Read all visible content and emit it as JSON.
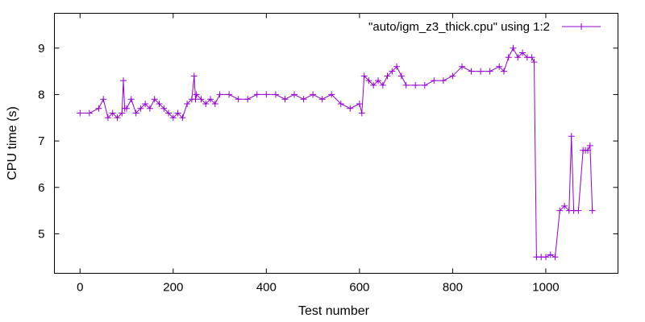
{
  "chart_data": {
    "type": "line",
    "xlabel": "Test number",
    "ylabel": "CPU time (s)",
    "xlim": [
      -55,
      1155
    ],
    "ylim": [
      4.15,
      9.75
    ],
    "x_ticks": [
      0,
      200,
      400,
      600,
      800,
      1000
    ],
    "y_ticks": [
      5,
      6,
      7,
      8,
      9
    ],
    "x_tick_labels": [
      "0",
      "200",
      "400",
      "600",
      "800",
      "1000"
    ],
    "y_tick_labels": [
      "5",
      "6",
      "7",
      "8",
      "9"
    ],
    "grid": false,
    "legend_position": "top-right",
    "marker": "plus",
    "series": [
      {
        "name": "\"auto/igm_z3_thick.cpu\" using 1:2",
        "color": "#9400d3",
        "x": [
          0,
          20,
          40,
          50,
          60,
          70,
          80,
          90,
          93,
          96,
          100,
          110,
          120,
          130,
          140,
          150,
          160,
          170,
          180,
          190,
          200,
          210,
          220,
          230,
          240,
          245,
          248,
          250,
          260,
          270,
          280,
          290,
          300,
          320,
          340,
          360,
          380,
          400,
          420,
          440,
          460,
          480,
          500,
          520,
          540,
          560,
          580,
          600,
          605,
          610,
          620,
          630,
          640,
          650,
          660,
          670,
          680,
          690,
          700,
          720,
          740,
          760,
          780,
          800,
          820,
          840,
          860,
          880,
          900,
          910,
          920,
          930,
          940,
          950,
          960,
          970,
          975,
          980,
          990,
          1000,
          1010,
          1020,
          1030,
          1040,
          1050,
          1055,
          1060,
          1070,
          1080,
          1085,
          1090,
          1095,
          1100
        ],
        "y": [
          7.6,
          7.6,
          7.7,
          7.9,
          7.5,
          7.6,
          7.5,
          7.6,
          8.3,
          7.7,
          7.7,
          7.9,
          7.6,
          7.7,
          7.8,
          7.7,
          7.9,
          7.8,
          7.7,
          7.6,
          7.5,
          7.6,
          7.5,
          7.8,
          7.9,
          8.4,
          7.9,
          8.0,
          7.9,
          7.8,
          7.9,
          7.8,
          8.0,
          8.0,
          7.9,
          7.9,
          8.0,
          8.0,
          8.0,
          7.9,
          8.0,
          7.9,
          8.0,
          7.9,
          8.0,
          7.8,
          7.7,
          7.8,
          7.6,
          8.4,
          8.3,
          8.2,
          8.3,
          8.2,
          8.4,
          8.5,
          8.6,
          8.4,
          8.2,
          8.2,
          8.2,
          8.3,
          8.3,
          8.4,
          8.6,
          8.5,
          8.5,
          8.5,
          8.6,
          8.5,
          8.8,
          9.0,
          8.8,
          8.9,
          8.8,
          8.8,
          8.7,
          4.5,
          4.5,
          4.5,
          4.55,
          4.5,
          5.5,
          5.6,
          5.5,
          7.1,
          5.5,
          5.5,
          6.8,
          6.8,
          6.8,
          6.9,
          5.5
        ]
      }
    ]
  }
}
